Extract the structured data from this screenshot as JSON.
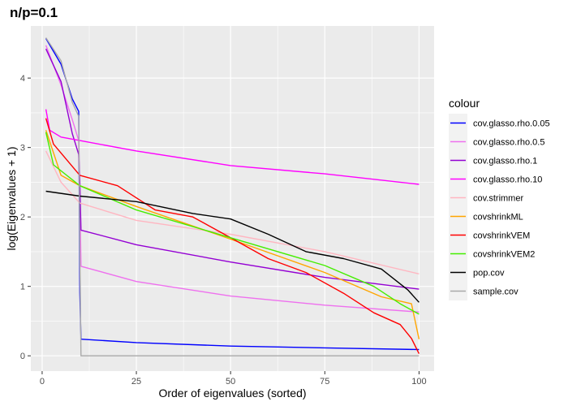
{
  "chart_data": {
    "type": "line",
    "title": "n/p=0.1",
    "xlabel": "Order of eigenvalues (sorted)",
    "ylabel": "log(Eigenvalues + 1)",
    "xlim": [
      -3,
      104
    ],
    "ylim": [
      -0.22,
      4.75
    ],
    "x_ticks": [
      0,
      25,
      50,
      75,
      100
    ],
    "y_ticks": [
      0,
      1,
      2,
      3,
      4
    ],
    "grid": true,
    "legend": {
      "title": "colour",
      "position": "right"
    },
    "series": [
      {
        "name": "cov.glasso.rho.0.05",
        "color": "#0000ff",
        "points": [
          [
            1,
            4.57
          ],
          [
            5,
            4.2
          ],
          [
            8,
            3.7
          ],
          [
            9.7,
            3.52
          ],
          [
            10,
            0.9
          ],
          [
            10.3,
            0.24
          ],
          [
            25,
            0.19
          ],
          [
            50,
            0.14
          ],
          [
            75,
            0.115
          ],
          [
            100,
            0.09
          ]
        ]
      },
      {
        "name": "cov.glasso.rho.0.5",
        "color": "#ee70ee",
        "points": [
          [
            1,
            4.47
          ],
          [
            5,
            3.9
          ],
          [
            8,
            3.4
          ],
          [
            9.7,
            3.1
          ],
          [
            10,
            2.3
          ],
          [
            10.3,
            1.29
          ],
          [
            25,
            1.07
          ],
          [
            50,
            0.86
          ],
          [
            75,
            0.73
          ],
          [
            100,
            0.63
          ]
        ]
      },
      {
        "name": "cov.glasso.rho.1",
        "color": "#9400d3",
        "points": [
          [
            1,
            4.42
          ],
          [
            5,
            3.95
          ],
          [
            8,
            3.2
          ],
          [
            9.7,
            2.9
          ],
          [
            10,
            2.5
          ],
          [
            10.3,
            1.81
          ],
          [
            25,
            1.6
          ],
          [
            50,
            1.35
          ],
          [
            75,
            1.13
          ],
          [
            100,
            0.96
          ]
        ]
      },
      {
        "name": "cov.glasso.rho.10",
        "color": "#ff00ff",
        "points": [
          [
            1,
            3.55
          ],
          [
            2,
            3.25
          ],
          [
            5,
            3.15
          ],
          [
            10,
            3.1
          ],
          [
            25,
            2.95
          ],
          [
            50,
            2.74
          ],
          [
            75,
            2.62
          ],
          [
            100,
            2.47
          ]
        ]
      },
      {
        "name": "cov.strimmer",
        "color": "#ffb6c1",
        "points": [
          [
            1,
            2.95
          ],
          [
            5,
            2.5
          ],
          [
            10,
            2.2
          ],
          [
            25,
            1.95
          ],
          [
            50,
            1.75
          ],
          [
            75,
            1.5
          ],
          [
            100,
            1.18
          ]
        ]
      },
      {
        "name": "covshrinkML",
        "color": "#ffa500",
        "points": [
          [
            1,
            3.25
          ],
          [
            5,
            2.6
          ],
          [
            10,
            2.45
          ],
          [
            25,
            2.15
          ],
          [
            50,
            1.68
          ],
          [
            75,
            1.2
          ],
          [
            90,
            0.85
          ],
          [
            98,
            0.75
          ],
          [
            100,
            0.24
          ]
        ]
      },
      {
        "name": "covshrinkVEM",
        "color": "#ff0000",
        "points": [
          [
            1,
            3.42
          ],
          [
            3,
            3.05
          ],
          [
            10,
            2.6
          ],
          [
            20,
            2.45
          ],
          [
            30,
            2.1
          ],
          [
            40,
            2.0
          ],
          [
            50,
            1.7
          ],
          [
            60,
            1.4
          ],
          [
            70,
            1.2
          ],
          [
            80,
            0.9
          ],
          [
            88,
            0.62
          ],
          [
            95,
            0.45
          ],
          [
            98,
            0.25
          ],
          [
            100,
            0.03
          ]
        ]
      },
      {
        "name": "covshrinkVEM2",
        "color": "#44ee00",
        "points": [
          [
            1,
            3.22
          ],
          [
            3,
            2.75
          ],
          [
            10,
            2.45
          ],
          [
            25,
            2.1
          ],
          [
            50,
            1.7
          ],
          [
            75,
            1.3
          ],
          [
            88,
            1.0
          ],
          [
            95,
            0.75
          ],
          [
            100,
            0.6
          ]
        ]
      },
      {
        "name": "pop.cov",
        "color": "#000000",
        "points": [
          [
            1,
            2.37
          ],
          [
            10,
            2.3
          ],
          [
            25,
            2.22
          ],
          [
            40,
            2.05
          ],
          [
            50,
            1.97
          ],
          [
            60,
            1.75
          ],
          [
            70,
            1.5
          ],
          [
            80,
            1.4
          ],
          [
            90,
            1.25
          ],
          [
            97,
            0.95
          ],
          [
            100,
            0.77
          ]
        ]
      },
      {
        "name": "sample.cov",
        "color": "#a9a9a9",
        "points": [
          [
            1,
            4.58
          ],
          [
            5,
            4.25
          ],
          [
            8,
            3.65
          ],
          [
            9.7,
            3.45
          ],
          [
            10,
            1.5
          ],
          [
            10.3,
            0.0
          ],
          [
            100,
            0.0
          ]
        ]
      }
    ]
  }
}
